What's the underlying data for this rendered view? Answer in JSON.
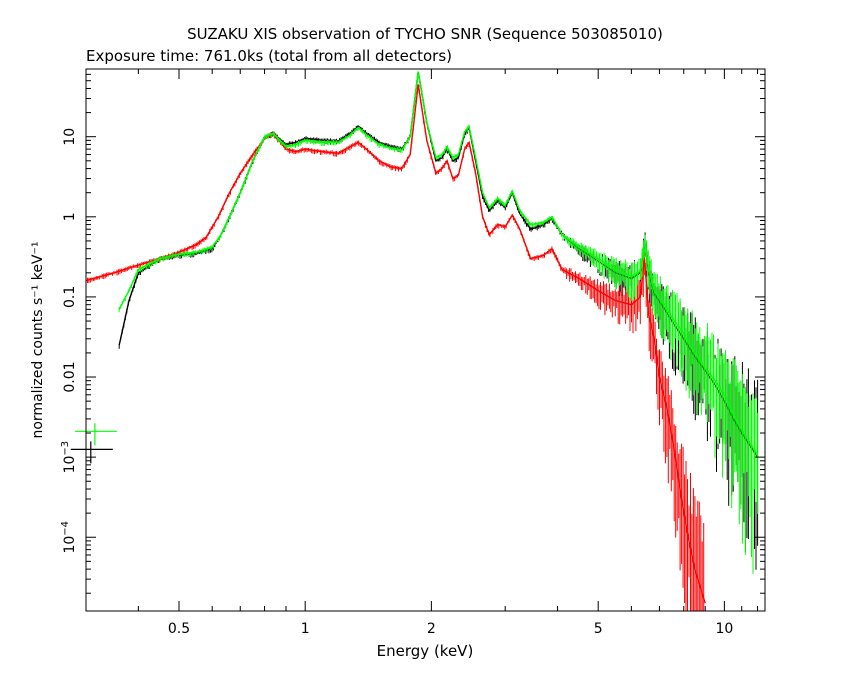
{
  "title": "SUZAKU XIS observation of TYCHO SNR (Sequence 503085010)",
  "subtitle": "Exposure time: 761.0ks (total from all detectors)",
  "chart_data": {
    "type": "scatter",
    "title": "SUZAKU XIS observation of TYCHO SNR (Sequence 503085010)",
    "subtitle": "Exposure time: 761.0ks (total from all detectors)",
    "xlabel": "Energy (keV)",
    "ylabel": "normalized counts s⁻¹ keV⁻¹",
    "xscale": "log",
    "yscale": "log",
    "xlim": [
      0.3,
      12.5
    ],
    "ylim": [
      1.2e-05,
      70
    ],
    "grid": false,
    "x_ticks": [
      {
        "value": 0.5,
        "label": "0.5"
      },
      {
        "value": 1,
        "label": "1"
      },
      {
        "value": 2,
        "label": "2"
      },
      {
        "value": 5,
        "label": "5"
      },
      {
        "value": 10,
        "label": "10"
      }
    ],
    "y_ticks": [
      {
        "value": 10,
        "label": "10"
      },
      {
        "value": 1,
        "label": "1"
      },
      {
        "value": 0.1,
        "label": "0.1"
      },
      {
        "value": 0.01,
        "label": "0.01"
      },
      {
        "value": 0.001,
        "base": "10",
        "exp": "−3"
      },
      {
        "value": 0.0001,
        "base": "10",
        "exp": "−4"
      }
    ],
    "series": [
      {
        "color": "#000000",
        "x": [
          0.36,
          0.38,
          0.4,
          0.45,
          0.5,
          0.55,
          0.6,
          0.63,
          0.66,
          0.7,
          0.75,
          0.8,
          0.84,
          0.9,
          0.95,
          1.0,
          1.1,
          1.2,
          1.28,
          1.34,
          1.4,
          1.5,
          1.6,
          1.7,
          1.78,
          1.86,
          1.95,
          2.05,
          2.12,
          2.18,
          2.25,
          2.32,
          2.4,
          2.46,
          2.55,
          2.65,
          2.75,
          2.88,
          3.0,
          3.12,
          3.25,
          3.45,
          3.7,
          3.88,
          4.1,
          4.5,
          5.0,
          5.5,
          6.0,
          6.3,
          6.45,
          6.6,
          6.8,
          7.2,
          7.6,
          8.0,
          8.5,
          9.0,
          9.5,
          10.0,
          10.5,
          11.0,
          11.5,
          12.0
        ],
        "y": [
          0.025,
          0.09,
          0.2,
          0.3,
          0.33,
          0.35,
          0.4,
          0.6,
          1.0,
          2.0,
          5.0,
          10.0,
          11.0,
          8.0,
          8.5,
          9.5,
          9.0,
          8.8,
          11.0,
          13.5,
          11.0,
          8.5,
          7.5,
          7.0,
          10.0,
          65.0,
          15.0,
          5.0,
          5.5,
          7.0,
          5.0,
          5.5,
          11.0,
          13.0,
          5.0,
          1.8,
          1.2,
          1.6,
          1.3,
          2.0,
          1.1,
          0.7,
          0.8,
          0.95,
          0.6,
          0.4,
          0.28,
          0.2,
          0.17,
          0.2,
          0.5,
          0.2,
          0.11,
          0.07,
          0.045,
          0.03,
          0.018,
          0.012,
          0.008,
          0.005,
          0.003,
          0.002,
          0.0014,
          0.001
        ]
      },
      {
        "color": "#ff0000",
        "x": [
          0.3,
          0.35,
          0.4,
          0.45,
          0.5,
          0.55,
          0.58,
          0.62,
          0.66,
          0.7,
          0.75,
          0.8,
          0.84,
          0.9,
          0.95,
          1.0,
          1.1,
          1.2,
          1.28,
          1.34,
          1.4,
          1.5,
          1.6,
          1.7,
          1.78,
          1.86,
          1.95,
          2.05,
          2.12,
          2.18,
          2.25,
          2.32,
          2.4,
          2.46,
          2.55,
          2.65,
          2.75,
          2.88,
          3.0,
          3.12,
          3.25,
          3.45,
          3.7,
          3.88,
          4.1,
          4.5,
          5.0,
          5.5,
          6.0,
          6.3,
          6.45,
          6.6,
          6.8,
          7.0,
          7.3,
          7.6,
          7.9,
          8.2,
          8.5,
          9.0
        ],
        "y": [
          0.16,
          0.2,
          0.25,
          0.3,
          0.36,
          0.45,
          0.55,
          1.0,
          2.0,
          3.5,
          6.0,
          9.5,
          11.0,
          7.0,
          6.5,
          7.0,
          6.5,
          6.2,
          7.5,
          8.5,
          7.0,
          5.0,
          4.2,
          4.0,
          6.0,
          45.0,
          9.0,
          3.5,
          4.0,
          5.0,
          3.0,
          3.3,
          7.0,
          8.5,
          3.5,
          1.0,
          0.6,
          0.8,
          0.75,
          1.05,
          0.7,
          0.3,
          0.33,
          0.4,
          0.22,
          0.17,
          0.12,
          0.09,
          0.08,
          0.1,
          0.3,
          0.06,
          0.03,
          0.01,
          0.004,
          0.0012,
          0.0003,
          0.0001,
          4e-05,
          1.5e-05
        ]
      },
      {
        "color": "#00ff00",
        "x": [
          0.36,
          0.38,
          0.4,
          0.45,
          0.5,
          0.55,
          0.6,
          0.63,
          0.66,
          0.7,
          0.75,
          0.8,
          0.84,
          0.9,
          0.95,
          1.0,
          1.1,
          1.2,
          1.28,
          1.34,
          1.4,
          1.5,
          1.6,
          1.7,
          1.78,
          1.86,
          1.95,
          2.05,
          2.12,
          2.18,
          2.25,
          2.32,
          2.4,
          2.46,
          2.55,
          2.65,
          2.75,
          2.88,
          3.0,
          3.12,
          3.25,
          3.45,
          3.7,
          3.88,
          4.1,
          4.5,
          5.0,
          5.5,
          6.0,
          6.3,
          6.45,
          6.6,
          6.8,
          7.2,
          7.6,
          8.0,
          8.5,
          9.0,
          9.5,
          10.0,
          10.5,
          11.0,
          11.5,
          12.0
        ],
        "y": [
          0.07,
          0.12,
          0.22,
          0.3,
          0.34,
          0.36,
          0.42,
          0.6,
          1.0,
          2.0,
          5.0,
          10.0,
          11.0,
          7.5,
          8.0,
          9.0,
          8.5,
          8.5,
          10.5,
          13.0,
          10.5,
          8.0,
          7.2,
          6.8,
          10.0,
          65.0,
          15.0,
          5.5,
          6.0,
          7.5,
          5.5,
          6.0,
          11.5,
          13.5,
          5.5,
          2.0,
          1.3,
          1.7,
          1.4,
          2.1,
          1.2,
          0.8,
          0.85,
          1.0,
          0.6,
          0.42,
          0.3,
          0.22,
          0.18,
          0.21,
          0.5,
          0.22,
          0.12,
          0.08,
          0.05,
          0.035,
          0.02,
          0.013,
          0.009,
          0.006,
          0.0035,
          0.0022,
          0.0015,
          0.0011
        ]
      }
    ],
    "legend_marks": [
      {
        "color": "#00ff00",
        "x": 0.315,
        "y": 0.0021
      },
      {
        "color": "#000000",
        "x": 0.308,
        "y": 0.00125
      }
    ]
  }
}
